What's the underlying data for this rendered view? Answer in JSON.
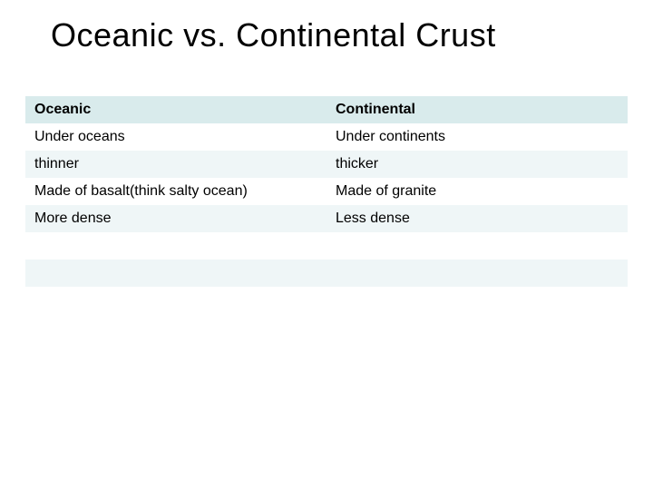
{
  "title": "Oceanic vs. Continental Crust",
  "table": {
    "type": "table",
    "columns": [
      "Oceanic",
      "Continental"
    ],
    "rows": [
      [
        "Under oceans",
        "Under continents"
      ],
      [
        "thinner",
        "thicker"
      ],
      [
        "Made of basalt(think salty ocean)",
        "Made of granite"
      ],
      [
        "More dense",
        "Less dense"
      ],
      [
        "",
        ""
      ],
      [
        "",
        ""
      ],
      [
        "",
        ""
      ]
    ],
    "header_bg": "#d9ebec",
    "row_odd_bg": "#eff6f7",
    "row_even_bg": "#ffffff",
    "header_fontsize": 16,
    "cell_fontsize": 16,
    "title_fontsize": 36,
    "text_color": "#000000"
  }
}
